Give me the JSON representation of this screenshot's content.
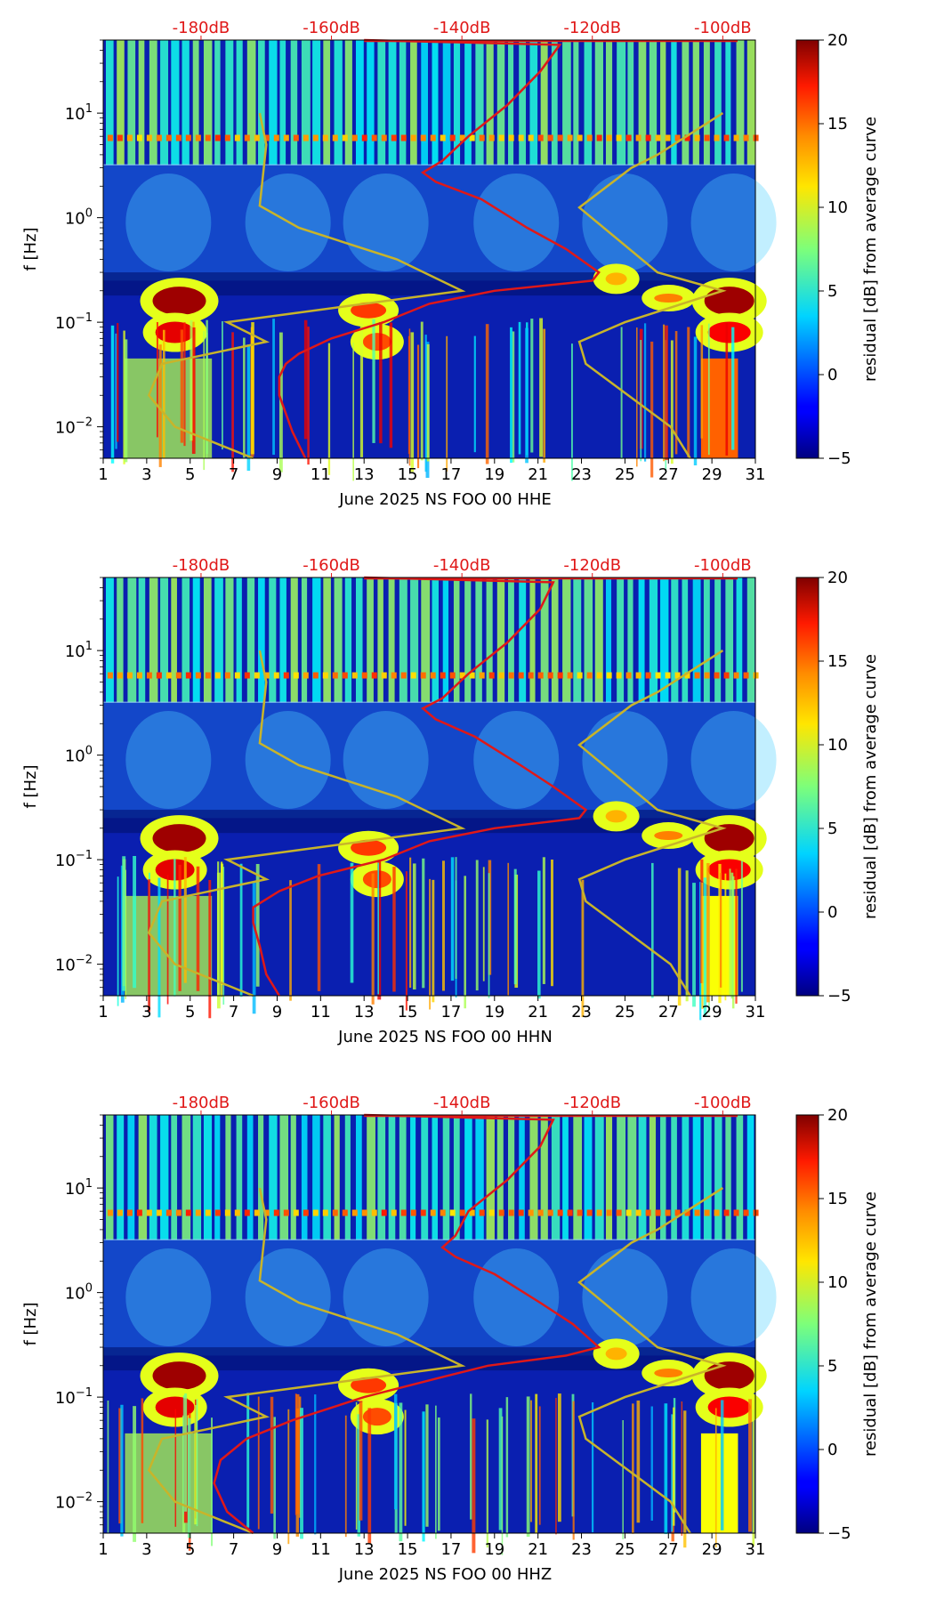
{
  "figure": {
    "colorbar_label": "residual [dB] from average curve",
    "colorbar_ticks": [
      "20",
      "15",
      "10",
      "5",
      "0",
      "−5"
    ],
    "colorbar_range": [
      -5,
      20
    ],
    "colormap": "jet",
    "yaxis_label": "f [Hz]",
    "y_ticks": [
      {
        "label": "10",
        "exp": "1"
      },
      {
        "label": "10",
        "exp": "0"
      },
      {
        "label": "10",
        "exp": "−1"
      },
      {
        "label": "10",
        "exp": "−2"
      }
    ],
    "x_ticks": [
      "1",
      "3",
      "5",
      "7",
      "9",
      "11",
      "13",
      "15",
      "17",
      "19",
      "21",
      "23",
      "25",
      "27",
      "29",
      "31"
    ],
    "db_ticks": [
      "-180dB",
      "-160dB",
      "-140dB",
      "-120dB",
      "-100dB"
    ],
    "colors": {
      "noise_model": "#c8b42a",
      "psd_curve": "#e01818",
      "db_label": "#e01818"
    }
  },
  "chart_data": [
    {
      "type": "heatmap",
      "xlabel": "June 2025 NS FOO 00 HHE",
      "ylabel": "f [Hz]",
      "xlim": [
        1,
        31
      ],
      "ylim_hz": [
        0.005,
        50
      ],
      "yscale": "log",
      "secondary_xlim_db": [
        -195,
        -95
      ],
      "median_psd_curve_db": [
        [
          0.005,
          -164
        ],
        [
          0.009,
          -166
        ],
        [
          0.02,
          -168
        ],
        [
          0.03,
          -168
        ],
        [
          0.04,
          -167
        ],
        [
          0.05,
          -165
        ],
        [
          0.07,
          -160
        ],
        [
          0.1,
          -152
        ],
        [
          0.15,
          -145
        ],
        [
          0.2,
          -135
        ],
        [
          0.25,
          -120
        ],
        [
          0.3,
          -119
        ],
        [
          0.5,
          -124
        ],
        [
          0.8,
          -130
        ],
        [
          1.5,
          -137
        ],
        [
          2.2,
          -144
        ],
        [
          2.7,
          -146
        ],
        [
          3.5,
          -143
        ],
        [
          6,
          -139
        ],
        [
          12,
          -133
        ],
        [
          25,
          -128
        ],
        [
          45,
          -125
        ],
        [
          50,
          -155
        ]
      ]
    },
    {
      "type": "heatmap",
      "xlabel": "June 2025 NS FOO 00 HHN",
      "ylabel": "f [Hz]",
      "xlim": [
        1,
        31
      ],
      "ylim_hz": [
        0.005,
        50
      ],
      "yscale": "log",
      "secondary_xlim_db": [
        -195,
        -95
      ],
      "median_psd_curve_db": [
        [
          0.005,
          -168
        ],
        [
          0.008,
          -170
        ],
        [
          0.015,
          -171
        ],
        [
          0.025,
          -172
        ],
        [
          0.035,
          -172
        ],
        [
          0.05,
          -168
        ],
        [
          0.07,
          -162
        ],
        [
          0.1,
          -152
        ],
        [
          0.15,
          -145
        ],
        [
          0.2,
          -135
        ],
        [
          0.25,
          -122
        ],
        [
          0.3,
          -121
        ],
        [
          0.5,
          -126
        ],
        [
          0.8,
          -131
        ],
        [
          1.5,
          -138
        ],
        [
          2.2,
          -144
        ],
        [
          2.8,
          -146
        ],
        [
          3.5,
          -143
        ],
        [
          6,
          -139
        ],
        [
          12,
          -133
        ],
        [
          25,
          -128
        ],
        [
          45,
          -126
        ],
        [
          50,
          -155
        ]
      ]
    },
    {
      "type": "heatmap",
      "xlabel": "June 2025 NS FOO 00 HHZ",
      "ylabel": "f [Hz]",
      "xlim": [
        1,
        31
      ],
      "ylim_hz": [
        0.005,
        50
      ],
      "yscale": "log",
      "secondary_xlim_db": [
        -195,
        -95
      ],
      "median_psd_curve_db": [
        [
          0.005,
          -172
        ],
        [
          0.008,
          -176
        ],
        [
          0.015,
          -178
        ],
        [
          0.025,
          -177
        ],
        [
          0.04,
          -173
        ],
        [
          0.06,
          -166
        ],
        [
          0.1,
          -155
        ],
        [
          0.15,
          -144
        ],
        [
          0.2,
          -136
        ],
        [
          0.25,
          -124
        ],
        [
          0.3,
          -119
        ],
        [
          0.5,
          -123
        ],
        [
          0.8,
          -128
        ],
        [
          1.5,
          -135
        ],
        [
          2.2,
          -141
        ],
        [
          2.7,
          -143
        ],
        [
          3.5,
          -141
        ],
        [
          6,
          -139
        ],
        [
          12,
          -133
        ],
        [
          25,
          -128
        ],
        [
          45,
          -126
        ],
        [
          50,
          -155
        ]
      ]
    }
  ],
  "noise_model_high_db": [
    [
      0.005,
      -105
    ],
    [
      0.01,
      -108
    ],
    [
      0.04,
      -121
    ],
    [
      0.065,
      -122
    ],
    [
      0.1,
      -115
    ],
    [
      0.2,
      -100
    ],
    [
      0.3,
      -110
    ],
    [
      1.25,
      -122
    ],
    [
      3,
      -114
    ],
    [
      4,
      -110
    ],
    [
      10,
      -100
    ]
  ],
  "noise_model_low_db": [
    [
      0.005,
      -172
    ],
    [
      0.01,
      -184
    ],
    [
      0.02,
      -188
    ],
    [
      0.04,
      -186
    ],
    [
      0.065,
      -170
    ],
    [
      0.1,
      -176
    ],
    [
      0.2,
      -140
    ],
    [
      0.4,
      -150
    ],
    [
      0.8,
      -165
    ],
    [
      1.3,
      -171
    ],
    [
      5,
      -170
    ],
    [
      10,
      -171
    ]
  ]
}
